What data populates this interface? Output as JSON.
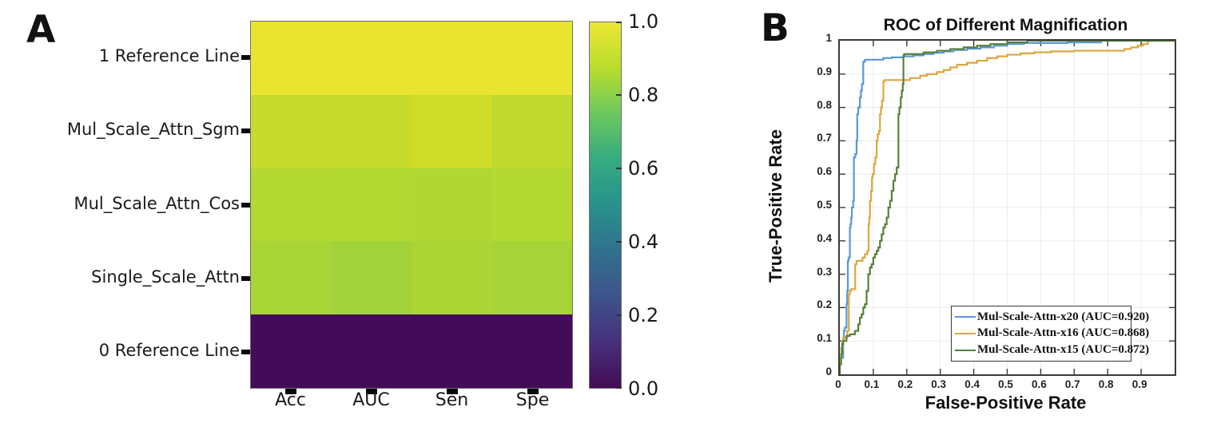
{
  "panels": {
    "a": {
      "label": "A"
    },
    "b": {
      "label": "B"
    }
  },
  "chart_data": [
    {
      "type": "heatmap",
      "panel": "A",
      "rows": [
        "1 Reference Line",
        "Mul_Scale_Attn_Sgm",
        "Mul_Scale_Attn_Cos",
        "Single_Scale_Attn",
        "0 Reference Line"
      ],
      "columns": [
        "Acc",
        "AUC",
        "Sen",
        "Spe"
      ],
      "values": [
        [
          1.0,
          1.0,
          1.0,
          1.0
        ],
        [
          0.9,
          0.9,
          0.92,
          0.88
        ],
        [
          0.86,
          0.86,
          0.85,
          0.86
        ],
        [
          0.83,
          0.81,
          0.84,
          0.82
        ],
        [
          0.0,
          0.0,
          0.0,
          0.0
        ]
      ],
      "cell_colors": [
        [
          "#e9e430",
          "#e9e430",
          "#e9e430",
          "#e9e430"
        ],
        [
          "#c6da2b",
          "#c6da2b",
          "#cfdd29",
          "#bfd92e"
        ],
        [
          "#b4d832",
          "#b2d832",
          "#b1d733",
          "#b4d931"
        ],
        [
          "#a9d536",
          "#a2d239",
          "#abd635",
          "#a5d338"
        ],
        [
          "#430b59",
          "#430b59",
          "#430b59",
          "#430b59"
        ]
      ],
      "value_range": [
        0.0,
        1.0
      ],
      "colorbar": {
        "tick_labels": [
          "1.0",
          "0.8",
          "0.6",
          "0.4",
          "0.2",
          "0.0"
        ],
        "colormap": "viridis",
        "gradient_stops_top_to_bottom": [
          "#ece733",
          "#b9dc2d",
          "#6cc85e",
          "#35ab80",
          "#27928c",
          "#31718e",
          "#3d538b",
          "#46307c",
          "#440c54"
        ]
      }
    },
    {
      "type": "line",
      "panel": "B",
      "title": "ROC of Different Magnification",
      "xlabel": "False-Positive Rate",
      "ylabel": "True-Positive Rate",
      "xlim": [
        0,
        1
      ],
      "ylim": [
        0,
        1
      ],
      "x_tick_labels": [
        "0",
        "0.1",
        "0.2",
        "0.3",
        "0.4",
        "0.5",
        "0.6",
        "0.7",
        "0.8",
        "0.9"
      ],
      "y_tick_labels": [
        "0",
        "0.1",
        "0.2",
        "0.3",
        "0.4",
        "0.5",
        "0.6",
        "0.7",
        "0.8",
        "0.9",
        "1"
      ],
      "grid": true,
      "grid_color": "#ebebeb",
      "box_color": "#3a3a3a",
      "legend_position": "lower right",
      "series": [
        {
          "name": "Mul-Scale-Attn-x20 (AUC=0.920)",
          "auc": 0.92,
          "color": "#5b97d5",
          "points": [
            [
              0,
              0.03
            ],
            [
              0.01,
              0.05
            ],
            [
              0.012,
              0.1
            ],
            [
              0.015,
              0.13
            ],
            [
              0.02,
              0.14
            ],
            [
              0.022,
              0.21
            ],
            [
              0.024,
              0.25
            ],
            [
              0.026,
              0.34
            ],
            [
              0.03,
              0.35
            ],
            [
              0.032,
              0.44
            ],
            [
              0.034,
              0.45
            ],
            [
              0.036,
              0.47
            ],
            [
              0.04,
              0.5
            ],
            [
              0.042,
              0.52
            ],
            [
              0.046,
              0.65
            ],
            [
              0.05,
              0.66
            ],
            [
              0.052,
              0.7
            ],
            [
              0.055,
              0.78
            ],
            [
              0.06,
              0.8
            ],
            [
              0.063,
              0.83
            ],
            [
              0.066,
              0.85
            ],
            [
              0.07,
              0.87
            ],
            [
              0.075,
              0.937
            ],
            [
              0.13,
              0.943
            ],
            [
              0.155,
              0.948
            ],
            [
              0.19,
              0.95
            ],
            [
              0.22,
              0.953
            ],
            [
              0.25,
              0.956
            ],
            [
              0.28,
              0.96
            ],
            [
              0.31,
              0.964
            ],
            [
              0.34,
              0.968
            ],
            [
              0.38,
              0.972
            ],
            [
              0.42,
              0.976
            ],
            [
              0.46,
              0.98
            ],
            [
              0.5,
              0.985
            ],
            [
              0.55,
              0.99
            ],
            [
              0.68,
              0.993
            ],
            [
              0.78,
              0.995
            ],
            [
              0.93,
              1.0
            ],
            [
              1.0,
              1.0
            ]
          ]
        },
        {
          "name": "Mul-Scale-Attn-x16 (AUC=0.868)",
          "auc": 0.868,
          "color": "#dda63e",
          "points": [
            [
              0,
              0.03
            ],
            [
              0.004,
              0.05
            ],
            [
              0.007,
              0.08
            ],
            [
              0.01,
              0.1
            ],
            [
              0.022,
              0.11
            ],
            [
              0.027,
              0.13
            ],
            [
              0.03,
              0.24
            ],
            [
              0.033,
              0.25
            ],
            [
              0.046,
              0.255
            ],
            [
              0.05,
              0.33
            ],
            [
              0.068,
              0.34
            ],
            [
              0.075,
              0.35
            ],
            [
              0.082,
              0.36
            ],
            [
              0.086,
              0.37
            ],
            [
              0.088,
              0.45
            ],
            [
              0.09,
              0.47
            ],
            [
              0.093,
              0.52
            ],
            [
              0.096,
              0.55
            ],
            [
              0.098,
              0.59
            ],
            [
              0.102,
              0.6
            ],
            [
              0.106,
              0.63
            ],
            [
              0.11,
              0.65
            ],
            [
              0.113,
              0.7
            ],
            [
              0.117,
              0.72
            ],
            [
              0.12,
              0.73
            ],
            [
              0.123,
              0.78
            ],
            [
              0.126,
              0.8
            ],
            [
              0.13,
              0.82
            ],
            [
              0.133,
              0.878
            ],
            [
              0.21,
              0.882
            ],
            [
              0.24,
              0.888
            ],
            [
              0.26,
              0.895
            ],
            [
              0.29,
              0.9
            ],
            [
              0.31,
              0.906
            ],
            [
              0.33,
              0.912
            ],
            [
              0.35,
              0.92
            ],
            [
              0.38,
              0.928
            ],
            [
              0.41,
              0.934
            ],
            [
              0.44,
              0.94
            ],
            [
              0.47,
              0.948
            ],
            [
              0.5,
              0.953
            ],
            [
              0.54,
              0.958
            ],
            [
              0.58,
              0.962
            ],
            [
              0.63,
              0.965
            ],
            [
              0.7,
              0.968
            ],
            [
              0.85,
              0.97
            ],
            [
              0.87,
              0.975
            ],
            [
              0.89,
              0.98
            ],
            [
              0.905,
              0.985
            ],
            [
              0.92,
              0.99
            ],
            [
              0.935,
              1.0
            ],
            [
              1.0,
              1.0
            ]
          ]
        },
        {
          "name": "Mul-Scale-Attn-x15 (AUC=0.872)",
          "auc": 0.872,
          "color": "#55803a",
          "points": [
            [
              0,
              0.02
            ],
            [
              0.004,
              0.03
            ],
            [
              0.007,
              0.06
            ],
            [
              0.01,
              0.09
            ],
            [
              0.02,
              0.1
            ],
            [
              0.03,
              0.115
            ],
            [
              0.045,
              0.12
            ],
            [
              0.055,
              0.13
            ],
            [
              0.06,
              0.15
            ],
            [
              0.065,
              0.17
            ],
            [
              0.07,
              0.18
            ],
            [
              0.075,
              0.2
            ],
            [
              0.08,
              0.21
            ],
            [
              0.085,
              0.25
            ],
            [
              0.09,
              0.3
            ],
            [
              0.095,
              0.32
            ],
            [
              0.1,
              0.33
            ],
            [
              0.105,
              0.35
            ],
            [
              0.11,
              0.36
            ],
            [
              0.115,
              0.37
            ],
            [
              0.12,
              0.38
            ],
            [
              0.125,
              0.4
            ],
            [
              0.13,
              0.42
            ],
            [
              0.135,
              0.44
            ],
            [
              0.14,
              0.45
            ],
            [
              0.145,
              0.47
            ],
            [
              0.15,
              0.5
            ],
            [
              0.155,
              0.52
            ],
            [
              0.16,
              0.55
            ],
            [
              0.165,
              0.58
            ],
            [
              0.17,
              0.6
            ],
            [
              0.175,
              0.62
            ],
            [
              0.178,
              0.78
            ],
            [
              0.182,
              0.8
            ],
            [
              0.185,
              0.83
            ],
            [
              0.188,
              0.85
            ],
            [
              0.19,
              0.87
            ],
            [
              0.192,
              0.955
            ],
            [
              0.25,
              0.96
            ],
            [
              0.29,
              0.965
            ],
            [
              0.33,
              0.97
            ],
            [
              0.37,
              0.975
            ],
            [
              0.41,
              0.98
            ],
            [
              0.45,
              0.985
            ],
            [
              0.5,
              0.99
            ],
            [
              0.56,
              0.995
            ],
            [
              0.7,
              1.0
            ],
            [
              1.0,
              1.0
            ]
          ]
        }
      ]
    }
  ]
}
